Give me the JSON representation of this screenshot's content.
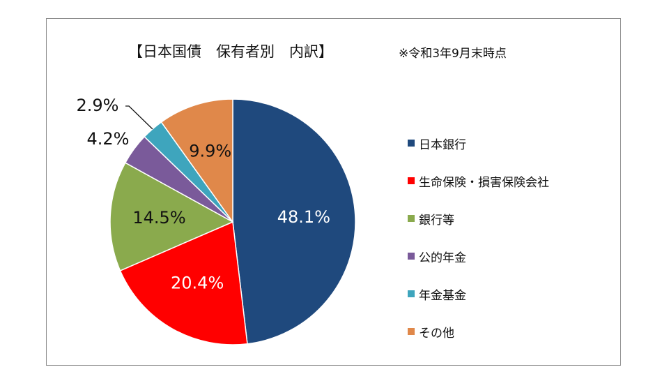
{
  "chart_data": {
    "type": "pie",
    "title": "【日本国債　保有者別　内訳】",
    "note": "※令和3年9月末時点",
    "slices": [
      {
        "label": "日本銀行",
        "value": 48.1,
        "display": "48.1%",
        "color": "#1f497d",
        "label_color": "#ffffff"
      },
      {
        "label": "生命保険・損害保険会社",
        "value": 20.4,
        "display": "20.4%",
        "color": "#ff0000",
        "label_color": "#ffffff"
      },
      {
        "label": "銀行等",
        "value": 14.5,
        "display": "14.5%",
        "color": "#8aaa4d",
        "label_color": "#111111"
      },
      {
        "label": "公的年金",
        "value": 4.2,
        "display": "4.2%",
        "color": "#7a5a9a",
        "label_color": "#111111"
      },
      {
        "label": "年金基金",
        "value": 2.9,
        "display": "2.9%",
        "color": "#3ea5bd",
        "label_color": "#111111"
      },
      {
        "label": "その他",
        "value": 9.9,
        "display": "9.9%",
        "color": "#e0884a",
        "label_color": "#111111"
      }
    ],
    "legend_position": "right"
  }
}
